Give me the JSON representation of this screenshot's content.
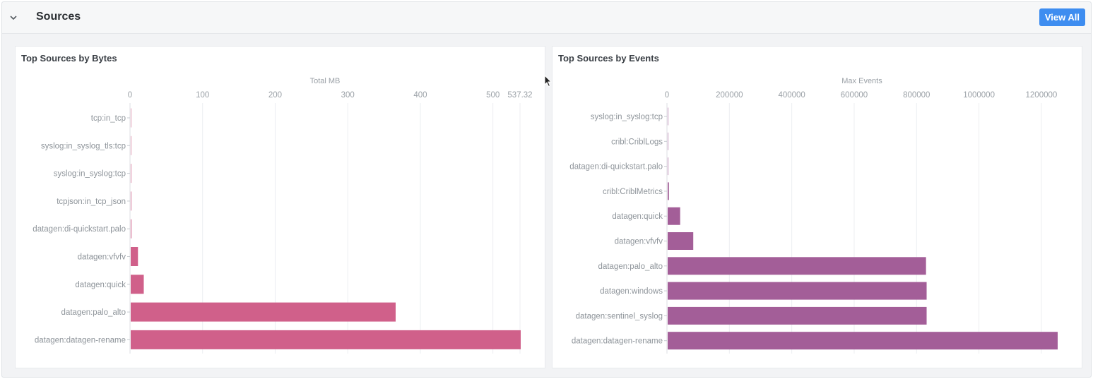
{
  "section": {
    "title": "Sources",
    "view_all_label": "View All",
    "collapse_icon": "chevron-down-icon"
  },
  "colors": {
    "bytes_bar": "#d0608a",
    "events_bar": "#a35e98",
    "button": "#3e8df0"
  },
  "chart_data": [
    {
      "type": "bar",
      "orientation": "horizontal",
      "title": "Top Sources by Bytes",
      "xlabel": "Total MB",
      "xlim": [
        0,
        537.32
      ],
      "x_ticks": [
        "0",
        "100",
        "200",
        "300",
        "400",
        "500",
        "537.32"
      ],
      "x_tick_values": [
        0,
        100,
        200,
        300,
        400,
        500,
        537.32
      ],
      "grid": true,
      "categories": [
        "tcp:in_tcp",
        "syslog:in_syslog_tls:tcp",
        "syslog:in_syslog:tcp",
        "tcpjson:in_tcp_json",
        "datagen:di-quickstart.palo",
        "datagen:vfvfv",
        "datagen:quick",
        "datagen:palo_alto",
        "datagen:datagen-rename"
      ],
      "values": [
        0.5,
        0.6,
        0.7,
        0.8,
        1.0,
        10,
        18,
        365,
        537.32
      ]
    },
    {
      "type": "bar",
      "orientation": "horizontal",
      "title": "Top Sources by Events",
      "xlabel": "Max Events",
      "xlim": [
        0,
        1250000
      ],
      "x_ticks": [
        "0",
        "200000",
        "400000",
        "600000",
        "800000",
        "1000000",
        "1200000"
      ],
      "x_tick_values": [
        0,
        200000,
        400000,
        600000,
        800000,
        1000000,
        1200000
      ],
      "grid": true,
      "categories": [
        "syslog:in_syslog:tcp",
        "cribl:CriblLogs",
        "datagen:di-quickstart.palo",
        "cribl:CriblMetrics",
        "datagen:quick",
        "datagen:vfvfv",
        "datagen:palo_alto",
        "datagen:windows",
        "datagen:sentinel_syslog",
        "datagen:datagen-rename"
      ],
      "values": [
        300,
        800,
        1500,
        4000,
        40000,
        82000,
        828000,
        830000,
        830000,
        1250000
      ]
    }
  ]
}
